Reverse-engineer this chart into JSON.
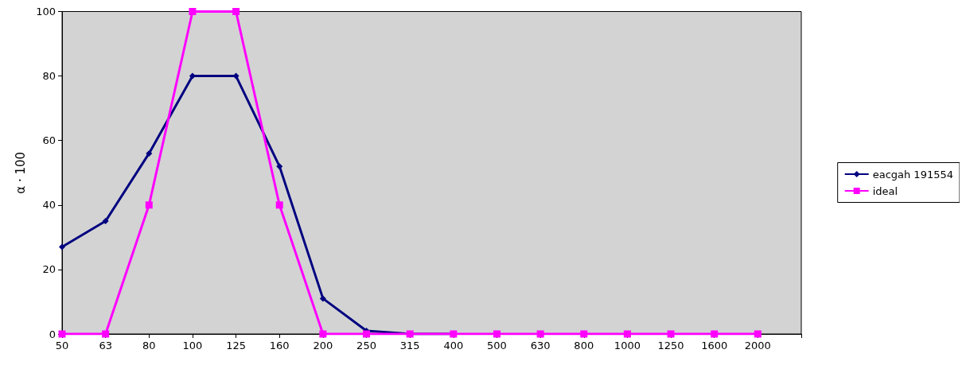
{
  "chart_data": {
    "type": "line",
    "ylabel": "α · 100",
    "categories": [
      "50",
      "63",
      "80",
      "100",
      "125",
      "160",
      "200",
      "250",
      "315",
      "400",
      "500",
      "630",
      "800",
      "1000",
      "1250",
      "1600",
      "2000",
      null
    ],
    "series": [
      {
        "name": "eacgah 191554",
        "color": "#000080",
        "marker": "diamond",
        "values": [
          27,
          35,
          56,
          80,
          80,
          52,
          11,
          1,
          0,
          0,
          null,
          null,
          null,
          null,
          null,
          null,
          null,
          null
        ]
      },
      {
        "name": "ideal",
        "color": "#ff00ff",
        "marker": "square",
        "values": [
          0,
          0,
          40,
          100,
          100,
          40,
          0,
          0,
          0,
          0,
          0,
          0,
          0,
          0,
          0,
          0,
          0,
          null
        ]
      }
    ],
    "ylim": [
      0,
      100
    ],
    "yticks": [
      0,
      20,
      40,
      60,
      80,
      100
    ],
    "grid": false,
    "legend": "right",
    "line_style": "solid"
  }
}
